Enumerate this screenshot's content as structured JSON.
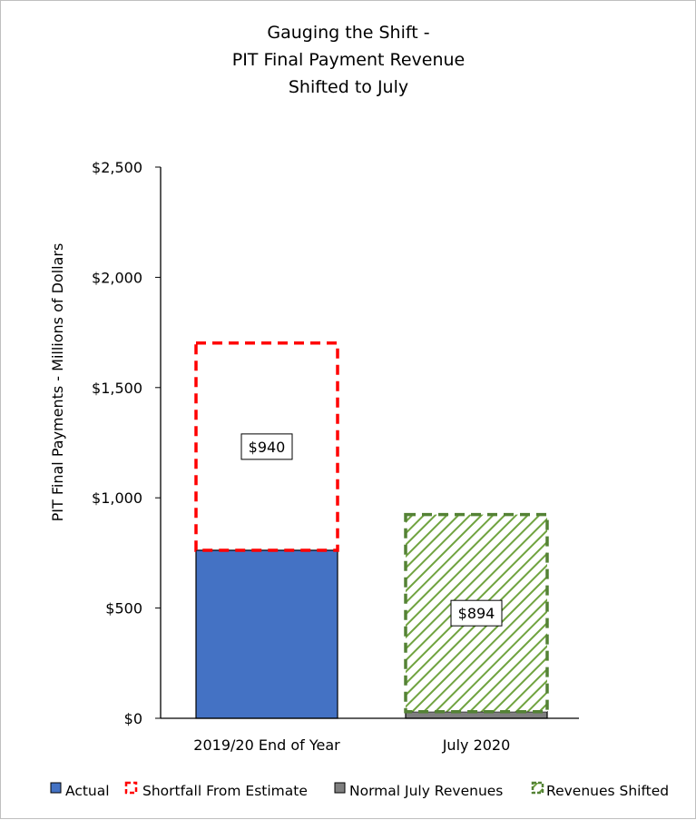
{
  "chart_data": {
    "type": "bar",
    "stacked": true,
    "title_lines": [
      "Gauging the Shift -",
      "PIT Final Payment Revenue",
      "Shifted to July"
    ],
    "xlabel": "",
    "ylabel": "PIT Final Payments - Millions of Dollars",
    "ylim": [
      0,
      2500
    ],
    "yticks": [
      0,
      500,
      1000,
      1500,
      2000,
      2500
    ],
    "ytick_labels": [
      "$0",
      "$500",
      "$1,000",
      "$1,500",
      "$2,000",
      "$2,500"
    ],
    "categories": [
      "2019/20 End of Year",
      "July 2020"
    ],
    "series": [
      {
        "name": "Actual",
        "values": [
          762,
          0
        ],
        "color": "#4472c4",
        "style": "solid"
      },
      {
        "name": "Shortfall From Estimate",
        "values": [
          940,
          0
        ],
        "color": "#ff0000",
        "style": "dashed-outline"
      },
      {
        "name": "Normal July Revenues",
        "values": [
          0,
          30
        ],
        "color": "#7f7f7f",
        "style": "solid"
      },
      {
        "name": "Revenues Shifted",
        "values": [
          0,
          894
        ],
        "color": "#548235",
        "style": "hatched-dashed"
      }
    ],
    "data_labels": [
      {
        "category": "2019/20 End of Year",
        "series": "Shortfall From Estimate",
        "text": "$940"
      },
      {
        "category": "July 2020",
        "series": "Revenues Shifted",
        "text": "$894"
      }
    ],
    "grid": false,
    "legend": "bottom"
  }
}
